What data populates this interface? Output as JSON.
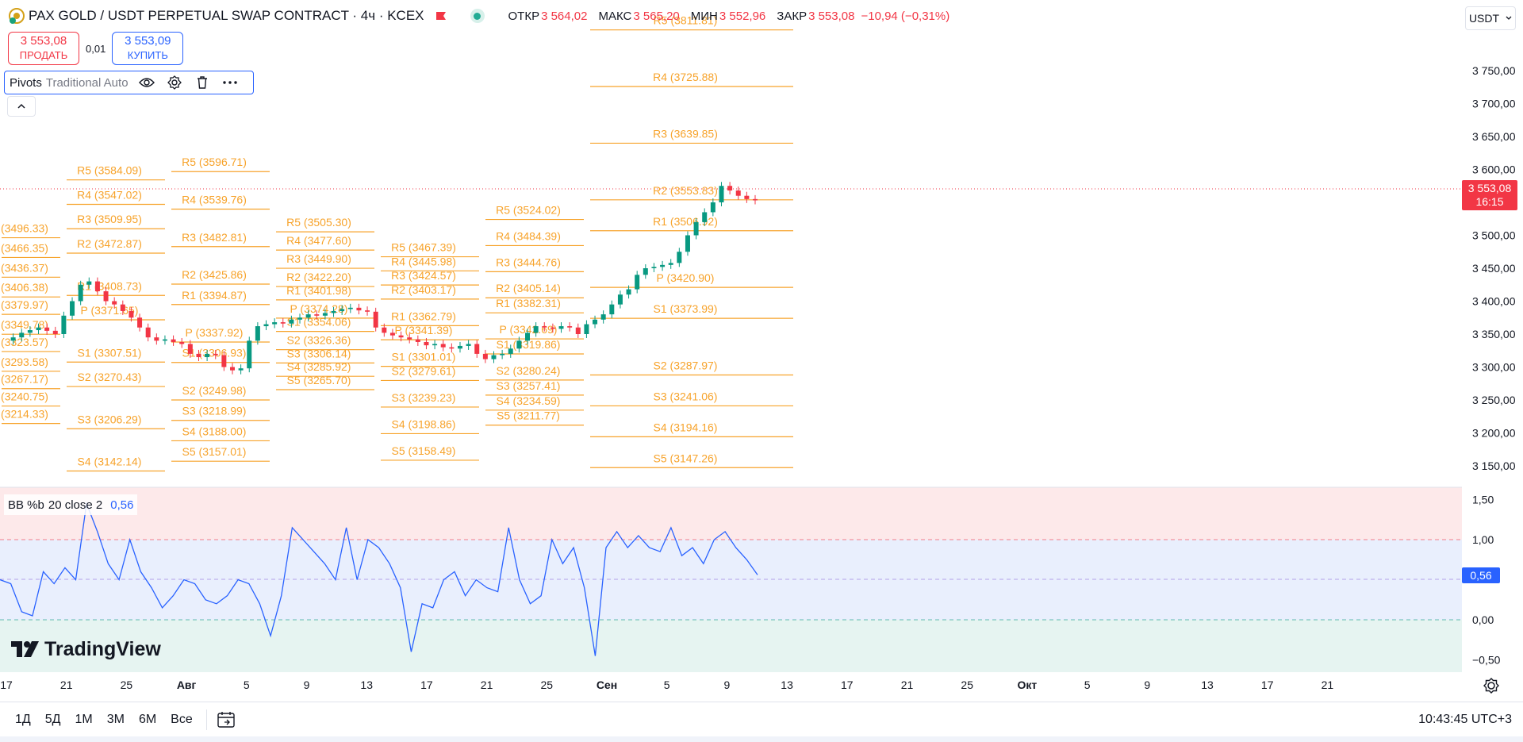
{
  "header": {
    "title": "PAX GOLD / USDT PERPETUAL SWAP CONTRACT · 4ч · KCEX",
    "ohlc": [
      {
        "label": "ОТКР",
        "value": "3 564,02"
      },
      {
        "label": "МАКС",
        "value": "3 565,20"
      },
      {
        "label": "МИН",
        "value": "3 552,96"
      },
      {
        "label": "ЗАКР",
        "value": "3 553,08"
      }
    ],
    "change": "−10,94 (−0,31%)",
    "currency": "USDT",
    "colors": {
      "up": "#089981",
      "down": "#f23645",
      "accent": "#2962ff"
    }
  },
  "trade": {
    "sell_price": "3 553,08",
    "sell_label": "ПРОДАТЬ",
    "spread": "0,01",
    "buy_price": "3 553,09",
    "buy_label": "КУПИТЬ"
  },
  "indicator": {
    "name": "Pivots",
    "args": "Traditional Auto"
  },
  "price_axis": {
    "labels": [
      "3 750,00",
      "3 700,00",
      "3 650,00",
      "3 600,00",
      "3 500,00",
      "3 450,00",
      "3 400,00",
      "3 350,00",
      "3 300,00",
      "3 250,00",
      "3 200,00",
      "3 150,00"
    ],
    "values": [
      3750,
      3700,
      3650,
      3600,
      3500,
      3450,
      3400,
      3350,
      3300,
      3250,
      3200,
      3150
    ],
    "current_price": "3 553,08",
    "countdown": "16:15"
  },
  "pivot_periods": [
    {
      "labels": [
        "(3496.33)",
        "(3466.35)",
        "(3436.37)",
        "(3406.38)",
        "(3379.97)",
        "(3349.78)",
        "(3323.57)",
        "(3293.58)",
        "(3267.17)",
        "(3240.75)",
        "(3214.33)"
      ],
      "values": [
        3496.33,
        3466.35,
        3436.37,
        3406.38,
        3379.97,
        3349.78,
        3323.57,
        3293.58,
        3267.17,
        3240.75,
        3214.33
      ]
    },
    {
      "labels": [
        "R5 (3584.09)",
        "R4 (3547.02)",
        "R3 (3509.95)",
        "R2 (3472.87)",
        "R1 (3408.73)",
        "P (3371.65)",
        "S1 (3307.51)",
        "S2 (3270.43)",
        "S3 (3206.29)",
        "S4 (3142.14)"
      ],
      "values": [
        3584.09,
        3547.02,
        3509.95,
        3472.87,
        3408.73,
        3371.65,
        3307.51,
        3270.43,
        3206.29,
        3142.14
      ]
    },
    {
      "labels": [
        "R5 (3596.71)",
        "R4 (3539.76)",
        "R3 (3482.81)",
        "R2 (3425.86)",
        "R1 (3394.87)",
        "P (3337.92)",
        "S1 (3306.93)",
        "S2 (3249.98)",
        "S3 (3218.99)",
        "S4 (3188.00)",
        "S5 (3157.01)"
      ],
      "values": [
        3596.71,
        3539.76,
        3482.81,
        3425.86,
        3394.87,
        3337.92,
        3306.93,
        3249.98,
        3218.99,
        3188.0,
        3157.01
      ]
    },
    {
      "labels": [
        "R5 (3505.30)",
        "R4 (3477.60)",
        "R3 (3449.90)",
        "R2 (3422.20)",
        "R1 (3401.98)",
        "P (3374.28)",
        "S1 (3354.06)",
        "S2 (3326.36)",
        "S3 (3306.14)",
        "S4 (3285.92)",
        "S5 (3265.70)"
      ],
      "values": [
        3505.3,
        3477.6,
        3449.9,
        3422.2,
        3401.98,
        3374.28,
        3354.06,
        3326.36,
        3306.14,
        3285.92,
        3265.7
      ]
    },
    {
      "labels": [
        "R5 (3467.39)",
        "R4 (3445.98)",
        "R3 (3424.57)",
        "R2 (3403.17)",
        "R1 (3362.79)",
        "P (3341.39)",
        "S1 (3301.01)",
        "S2 (3279.61)",
        "S3 (3239.23)",
        "S4 (3198.86)",
        "S5 (3158.49)"
      ],
      "values": [
        3467.39,
        3445.98,
        3424.57,
        3403.17,
        3362.79,
        3341.39,
        3301.01,
        3279.61,
        3239.23,
        3198.86,
        3158.49
      ]
    },
    {
      "labels": [
        "R5 (3524.02)",
        "R4 (3484.39)",
        "R3 (3444.76)",
        "R2 (3405.14)",
        "R1 (3382.31)",
        "P (3342.69)",
        "S1 (3319.86)",
        "S2 (3280.24)",
        "S3 (3257.41)",
        "S4 (3234.59)",
        "S5 (3211.77)"
      ],
      "values": [
        3524.02,
        3484.39,
        3444.76,
        3405.14,
        3382.31,
        3342.69,
        3319.86,
        3280.24,
        3257.41,
        3234.59,
        3211.77
      ]
    },
    {
      "labels": [
        "R5 (3811.81)",
        "R4 (3725.88)",
        "R3 (3639.85)",
        "R2 (3553.83)",
        "R1 (3506.92)",
        "P (3420.90)",
        "S1 (3373.99)",
        "S2 (3287.97)",
        "S3 (3241.06)",
        "S4 (3194.16)",
        "S5 (3147.26)"
      ],
      "values": [
        3811.81,
        3725.88,
        3639.85,
        3553.83,
        3506.92,
        3420.9,
        3373.99,
        3287.97,
        3241.06,
        3194.16,
        3147.26
      ]
    }
  ],
  "price_series": [
    3340,
    3345,
    3352,
    3356,
    3360,
    3355,
    3350,
    3378,
    3400,
    3425,
    3430,
    3415,
    3400,
    3395,
    3385,
    3375,
    3360,
    3345,
    3340,
    3342,
    3338,
    3335,
    3320,
    3315,
    3320,
    3318,
    3300,
    3295,
    3298,
    3340,
    3362,
    3365,
    3368,
    3366,
    3372,
    3375,
    3380,
    3378,
    3382,
    3385,
    3388,
    3390,
    3386,
    3384,
    3360,
    3352,
    3348,
    3345,
    3342,
    3338,
    3333,
    3335,
    3330,
    3328,
    3332,
    3335,
    3320,
    3312,
    3318,
    3320,
    3328,
    3340,
    3352,
    3362,
    3360,
    3358,
    3362,
    3360,
    3350,
    3365,
    3372,
    3380,
    3395,
    3410,
    3418,
    3440,
    3450,
    3452,
    3455,
    3458,
    3475,
    3500,
    3520,
    3535,
    3550,
    3575,
    3568,
    3560,
    3555,
    3553
  ],
  "bb_indicator": {
    "name": "BB %b",
    "args": "20 close 2",
    "value": "0,56",
    "axis_labels": [
      "1,50",
      "1,00",
      "0,00",
      "−0,50"
    ],
    "axis_values": [
      1.5,
      1.0,
      0.0,
      -0.5
    ],
    "series": [
      0.5,
      0.45,
      0.1,
      0.05,
      0.6,
      0.45,
      0.65,
      0.5,
      1.45,
      1.1,
      0.7,
      0.5,
      1.0,
      0.6,
      0.4,
      0.15,
      0.3,
      0.5,
      0.45,
      0.25,
      0.2,
      0.3,
      0.5,
      0.45,
      0.2,
      -0.2,
      0.3,
      1.15,
      1.0,
      0.85,
      0.7,
      0.5,
      1.15,
      0.5,
      1.0,
      0.9,
      0.7,
      0.4,
      -0.4,
      0.2,
      0.15,
      0.5,
      0.6,
      0.3,
      0.5,
      0.4,
      0.35,
      1.15,
      0.5,
      0.2,
      0.3,
      1.0,
      0.7,
      0.9,
      0.4,
      -0.45,
      0.9,
      1.1,
      0.9,
      1.05,
      0.9,
      0.85,
      1.15,
      0.8,
      0.9,
      0.7,
      1.0,
      1.1,
      0.9,
      0.75,
      0.56
    ]
  },
  "time_axis": [
    "17",
    "21",
    "25",
    "Авг",
    "5",
    "9",
    "13",
    "17",
    "21",
    "25",
    "Сен",
    "5",
    "9",
    "13",
    "17",
    "21",
    "25",
    "Окт",
    "5",
    "9",
    "13",
    "17",
    "21"
  ],
  "bottom": {
    "ranges": [
      "1Д",
      "5Д",
      "1М",
      "3М",
      "6М",
      "Все"
    ],
    "clock": "10:43:45 UTC+3"
  },
  "logo": "TradingView"
}
